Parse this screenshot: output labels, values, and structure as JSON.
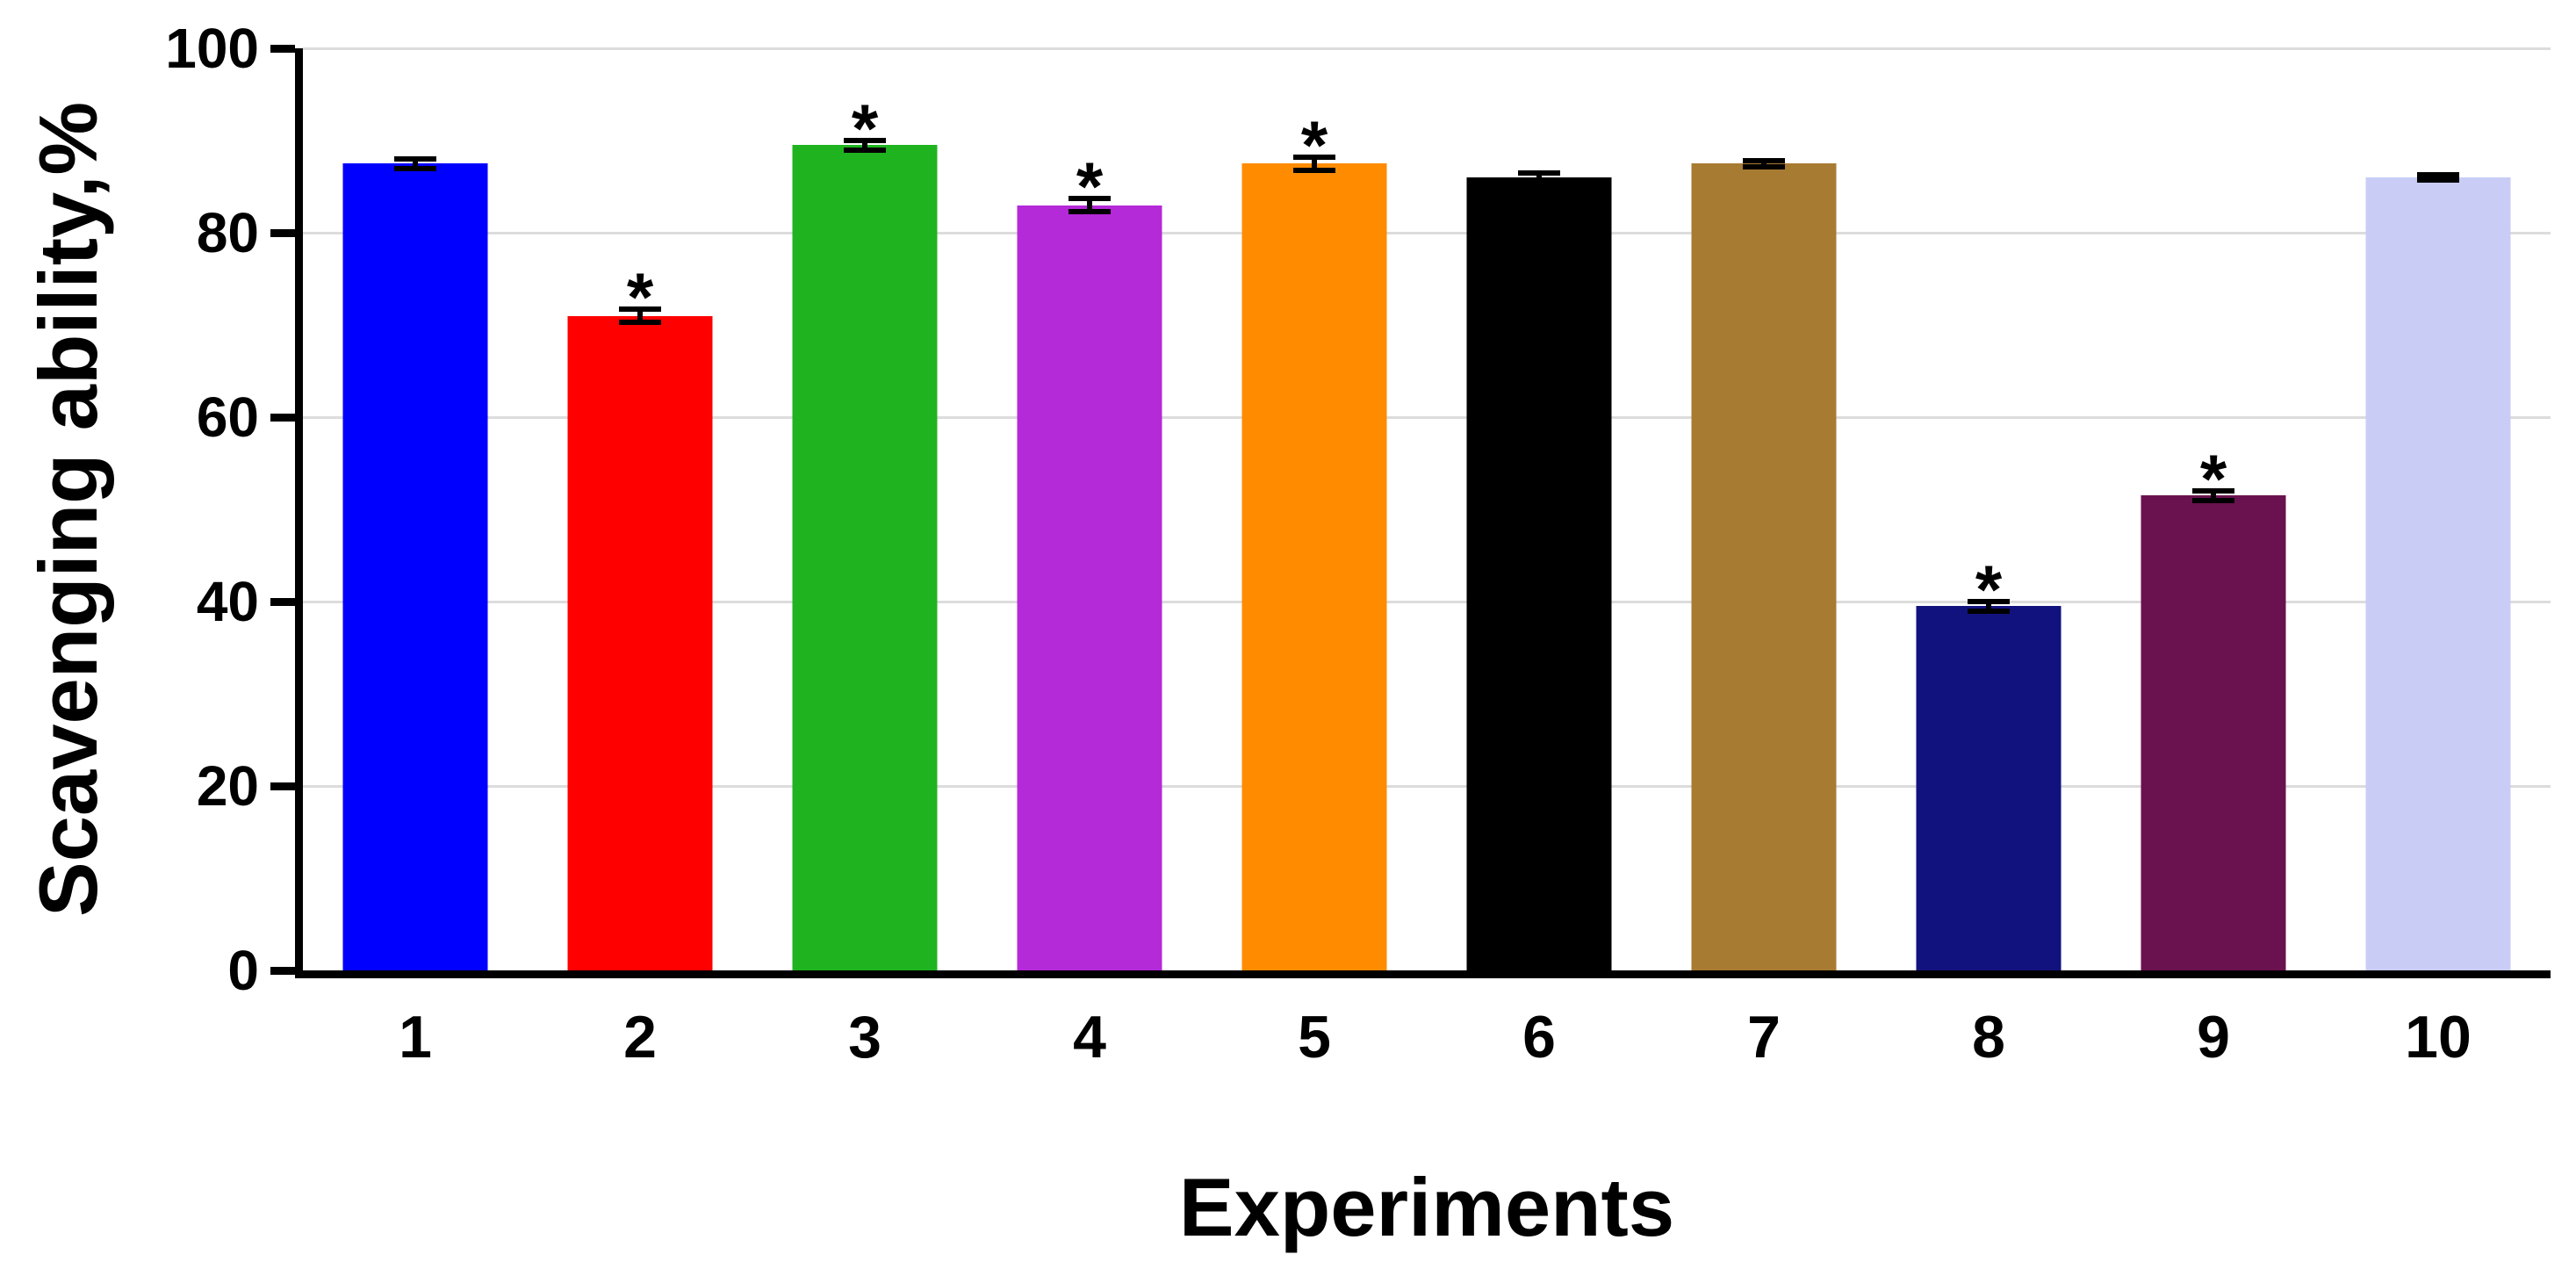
{
  "chart_data": {
    "type": "bar",
    "title": "",
    "xlabel": "Experiments",
    "ylabel": "Scavenging ability,%",
    "categories": [
      "1",
      "2",
      "3",
      "4",
      "5",
      "6",
      "7",
      "8",
      "9",
      "10"
    ],
    "values": [
      87.5,
      71,
      89.5,
      83,
      87.5,
      86,
      87.5,
      39.5,
      51.5,
      86
    ],
    "errors": [
      0.8,
      1.0,
      0.8,
      1.0,
      1.0,
      0.8,
      0.6,
      0.8,
      0.8,
      0.6
    ],
    "significant": [
      false,
      true,
      true,
      true,
      true,
      false,
      false,
      true,
      true,
      false
    ],
    "significance_marker": "*",
    "colors": [
      "#0000ff",
      "#ff0000",
      "#1fb41f",
      "#b429d8",
      "#ff8c00",
      "#000000",
      "#a87b32",
      "#12127e",
      "#6a124f",
      "#c9cdf5"
    ],
    "ylim": [
      0,
      100
    ],
    "yticks": [
      0,
      20,
      40,
      60,
      80,
      100
    ],
    "grid": true,
    "grid_color": "#dcdcdc",
    "axis_color": "#000000",
    "background_color": "#ffffff"
  }
}
